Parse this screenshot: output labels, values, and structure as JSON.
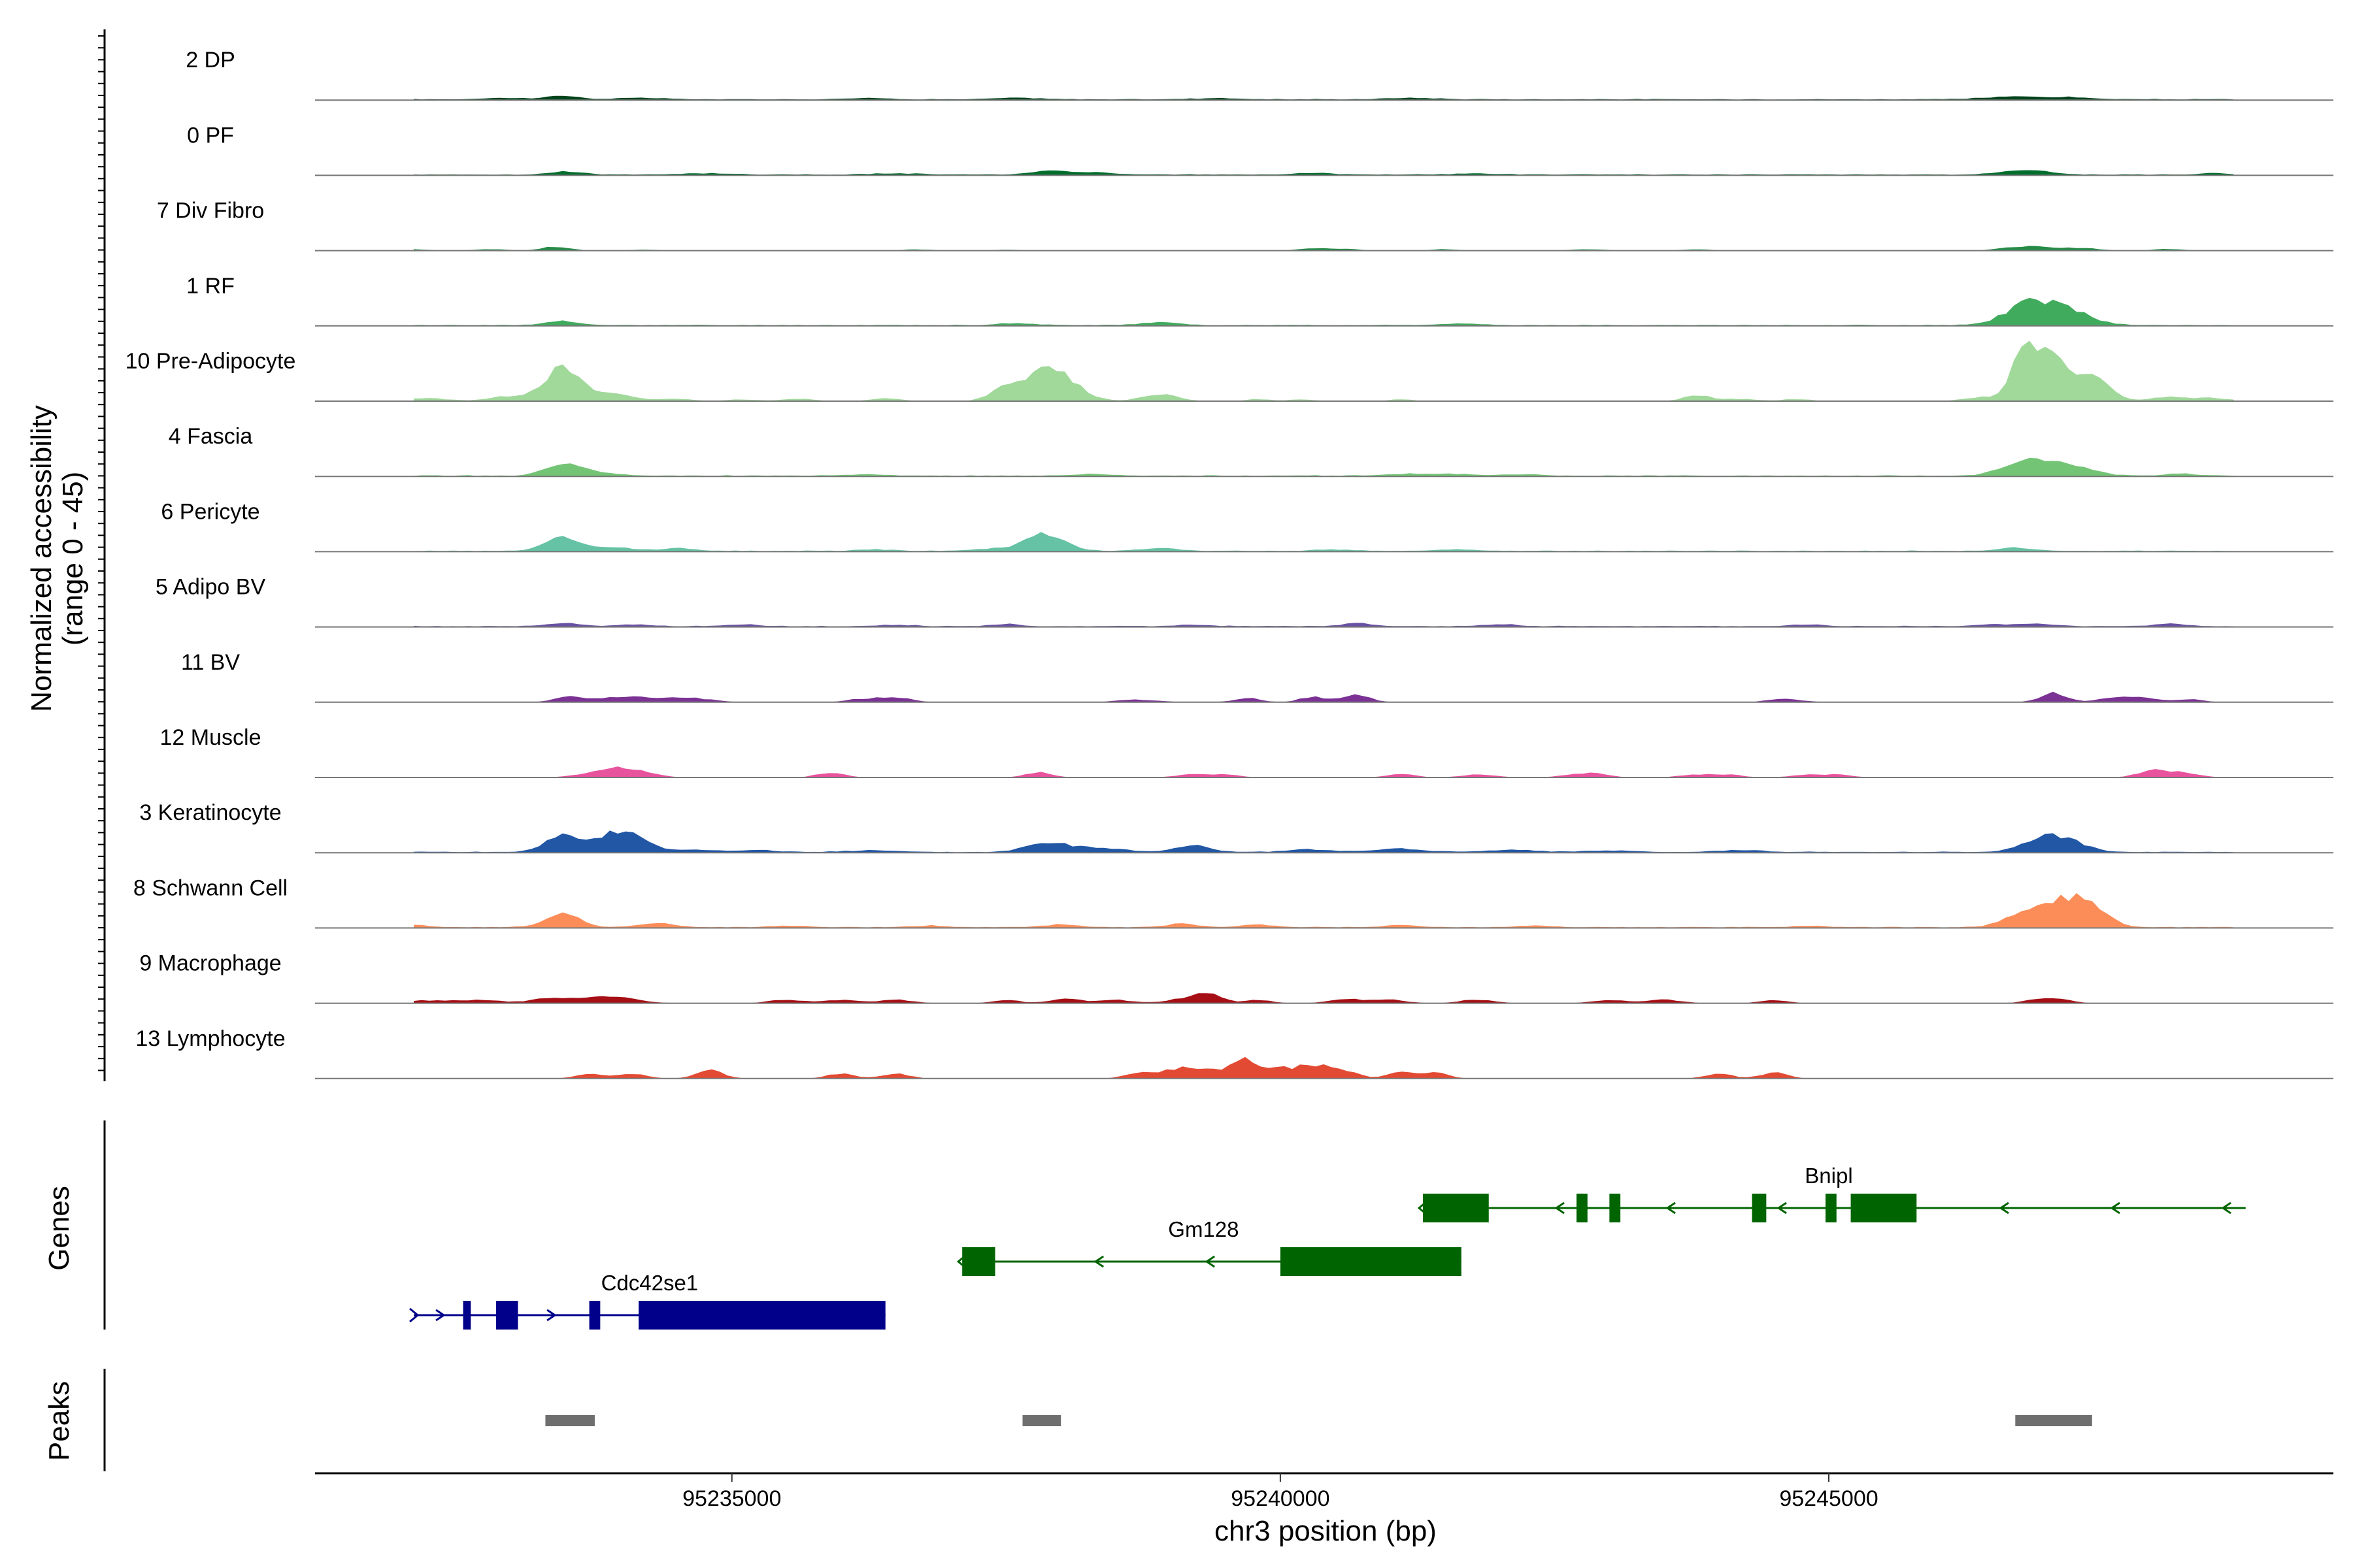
{
  "chart_data": {
    "type": "area",
    "title": "",
    "xlabel": "chr3 position (bp)",
    "ylabel_line1": "Normalized accessibility",
    "ylabel_line2": "(range 0 - 45)",
    "ylim": [
      0,
      45
    ],
    "xlim": [
      95231200,
      95249600
    ],
    "x_ticks": [
      95235000,
      95240000,
      95245000
    ],
    "x_tick_labels": [
      "95235000",
      "95240000",
      "95245000"
    ],
    "genes_label": "Genes",
    "peaks_label": "Peaks",
    "tracks": [
      {
        "name": "2 DP",
        "color": "#00441b",
        "coverage": "full",
        "peaks": [
          [
            95232900,
            0.8,
            180
          ],
          [
            95233450,
            2.0,
            160
          ],
          [
            95234200,
            0.8,
            200
          ],
          [
            95236200,
            0.7,
            200
          ],
          [
            95237600,
            0.8,
            200
          ],
          [
            95239400,
            0.7,
            200
          ],
          [
            95241200,
            0.8,
            220
          ],
          [
            95246700,
            1.6,
            260
          ],
          [
            95247200,
            1.0,
            200
          ]
        ]
      },
      {
        "name": "0 PF",
        "color": "#006d2c",
        "coverage": "full",
        "peaks": [
          [
            95233500,
            1.8,
            150
          ],
          [
            95234800,
            0.8,
            200
          ],
          [
            95236500,
            0.8,
            200
          ],
          [
            95237900,
            2.6,
            160
          ],
          [
            95238300,
            1.4,
            180
          ],
          [
            95240300,
            0.8,
            200
          ],
          [
            95241800,
            0.7,
            200
          ],
          [
            95246800,
            2.6,
            220
          ],
          [
            95248500,
            1.0,
            120
          ]
        ]
      },
      {
        "name": "7 Div Fibro",
        "color": "#238b45",
        "coverage": "sparse",
        "peaks": [
          [
            95232100,
            0.8,
            140
          ],
          [
            95232800,
            0.8,
            160
          ],
          [
            95233400,
            2.4,
            130
          ],
          [
            95234200,
            0.6,
            120
          ],
          [
            95236700,
            0.7,
            140
          ],
          [
            95237500,
            0.6,
            120
          ],
          [
            95240300,
            1.4,
            140
          ],
          [
            95240600,
            0.9,
            120
          ],
          [
            95241500,
            0.8,
            120
          ],
          [
            95242800,
            0.8,
            160
          ],
          [
            95243800,
            0.7,
            140
          ],
          [
            95246800,
            2.6,
            200
          ],
          [
            95247300,
            1.6,
            160
          ],
          [
            95248100,
            1.0,
            140
          ]
        ]
      },
      {
        "name": "1 RF",
        "color": "#41ab5d",
        "coverage": "full",
        "peaks": [
          [
            95233450,
            2.2,
            150
          ],
          [
            95237600,
            1.2,
            150
          ],
          [
            95238900,
            1.8,
            160
          ],
          [
            95241600,
            0.8,
            200
          ],
          [
            95246800,
            11.0,
            200
          ],
          [
            95247150,
            9.0,
            220
          ]
        ]
      },
      {
        "name": "10 Pre-Adipocyte",
        "color": "#a1d99b",
        "coverage": "sparse",
        "peaks": [
          [
            95232200,
            1.8,
            200
          ],
          [
            95233000,
            3.0,
            200
          ],
          [
            95233450,
            19.0,
            160
          ],
          [
            95233900,
            4.5,
            200
          ],
          [
            95234500,
            1.2,
            160
          ],
          [
            95235100,
            1.0,
            140
          ],
          [
            95235600,
            1.5,
            140
          ],
          [
            95236400,
            1.6,
            140
          ],
          [
            95237450,
            5.5,
            120
          ],
          [
            95237900,
            20.0,
            220
          ],
          [
            95238900,
            4.0,
            160
          ],
          [
            95239800,
            1.2,
            120
          ],
          [
            95240200,
            1.0,
            120
          ],
          [
            95241100,
            1.2,
            100
          ],
          [
            95243800,
            3.5,
            120
          ],
          [
            95244200,
            1.4,
            140
          ],
          [
            95244700,
            1.3,
            120
          ],
          [
            95246400,
            2.4,
            160
          ],
          [
            95246800,
            30.0,
            120
          ],
          [
            95247050,
            22.0,
            150
          ],
          [
            95247400,
            13.0,
            160
          ],
          [
            95248100,
            2.5,
            160
          ],
          [
            95248500,
            1.8,
            160
          ]
        ]
      },
      {
        "name": "4 Fascia",
        "color": "#74c476",
        "coverage": "full",
        "peaks": [
          [
            95233450,
            7.5,
            150
          ],
          [
            95233800,
            2.0,
            150
          ],
          [
            95236200,
            0.7,
            200
          ],
          [
            95238300,
            1.0,
            160
          ],
          [
            95241100,
            1.0,
            160
          ],
          [
            95241500,
            1.2,
            200
          ],
          [
            95242200,
            0.8,
            150
          ],
          [
            95246800,
            9.0,
            200
          ],
          [
            95247200,
            6.0,
            200
          ],
          [
            95248200,
            1.2,
            120
          ]
        ]
      },
      {
        "name": "6 Pericyte",
        "color": "#66c2a4",
        "coverage": "full",
        "peaks": [
          [
            95233450,
            8.0,
            160
          ],
          [
            95233900,
            2.2,
            200
          ],
          [
            95234500,
            1.5,
            150
          ],
          [
            95236300,
            1.0,
            140
          ],
          [
            95237300,
            1.2,
            150
          ],
          [
            95237850,
            10.5,
            180
          ],
          [
            95238900,
            1.5,
            160
          ],
          [
            95240500,
            0.9,
            160
          ],
          [
            95241600,
            1.0,
            160
          ],
          [
            95246700,
            2.0,
            140
          ]
        ]
      },
      {
        "name": "5 Adipo BV",
        "color": "#6a51a3",
        "coverage": "full",
        "peaks": [
          [
            95233450,
            1.8,
            150
          ],
          [
            95234100,
            1.0,
            150
          ],
          [
            95235100,
            1.0,
            150
          ],
          [
            95236500,
            0.8,
            150
          ],
          [
            95237500,
            1.3,
            120
          ],
          [
            95239200,
            0.9,
            150
          ],
          [
            95240700,
            2.0,
            120
          ],
          [
            95242000,
            1.5,
            120
          ],
          [
            95244800,
            1.0,
            150
          ],
          [
            95246500,
            1.0,
            150
          ],
          [
            95246900,
            1.6,
            150
          ],
          [
            95248100,
            1.6,
            120
          ]
        ]
      },
      {
        "name": "11 BV",
        "color": "#7b3294",
        "coverage": "sparse",
        "peaks": [
          [
            95233500,
            3.2,
            120
          ],
          [
            95233900,
            2.0,
            200
          ],
          [
            95234300,
            2.5,
            250
          ],
          [
            95234700,
            1.6,
            160
          ],
          [
            95236200,
            2.0,
            140
          ],
          [
            95236500,
            2.6,
            140
          ],
          [
            95238700,
            1.5,
            180
          ],
          [
            95239700,
            2.5,
            120
          ],
          [
            95240300,
            3.2,
            120
          ],
          [
            95240700,
            4.5,
            120
          ],
          [
            95244600,
            2.0,
            150
          ],
          [
            95247050,
            5.5,
            120
          ],
          [
            95247600,
            2.5,
            150
          ],
          [
            95247900,
            2.2,
            150
          ],
          [
            95248300,
            1.6,
            120
          ]
        ]
      },
      {
        "name": "12 Muscle",
        "color": "#e7539c",
        "coverage": "sparse",
        "peaks": [
          [
            95233700,
            2.0,
            160
          ],
          [
            95233950,
            4.5,
            140
          ],
          [
            95234200,
            2.8,
            140
          ],
          [
            95235900,
            3.0,
            120
          ],
          [
            95237800,
            3.0,
            120
          ],
          [
            95239200,
            1.8,
            150
          ],
          [
            95239500,
            1.8,
            120
          ],
          [
            95241100,
            2.2,
            120
          ],
          [
            95241800,
            1.8,
            150
          ],
          [
            95242700,
            1.8,
            150
          ],
          [
            95242900,
            1.5,
            120
          ],
          [
            95243800,
            1.8,
            150
          ],
          [
            95244100,
            1.6,
            120
          ],
          [
            95244800,
            1.6,
            150
          ],
          [
            95245100,
            1.6,
            120
          ],
          [
            95248000,
            4.5,
            160
          ],
          [
            95248300,
            1.6,
            120
          ]
        ]
      },
      {
        "name": "3 Keratinocyte",
        "color": "#2157a5",
        "coverage": "full",
        "peaks": [
          [
            95233450,
            9.0,
            150
          ],
          [
            95233800,
            5.0,
            150
          ],
          [
            95234050,
            10.0,
            180
          ],
          [
            95234600,
            1.2,
            200
          ],
          [
            95235200,
            1.0,
            200
          ],
          [
            95236300,
            1.0,
            200
          ],
          [
            95237900,
            5.5,
            200
          ],
          [
            95238400,
            2.0,
            200
          ],
          [
            95239200,
            4.0,
            160
          ],
          [
            95240300,
            1.5,
            200
          ],
          [
            95241100,
            2.0,
            200
          ],
          [
            95242100,
            1.2,
            200
          ],
          [
            95243000,
            1.0,
            200
          ],
          [
            95244200,
            1.0,
            200
          ],
          [
            95246800,
            3.0,
            150
          ],
          [
            95247050,
            8.5,
            150
          ],
          [
            95247300,
            3.0,
            150
          ]
        ]
      },
      {
        "name": "8 Schwann Cell",
        "color": "#fc8d59",
        "coverage": "full",
        "peaks": [
          [
            95232100,
            1.2,
            120
          ],
          [
            95233450,
            8.5,
            150
          ],
          [
            95234300,
            2.5,
            150
          ],
          [
            95235500,
            1.0,
            150
          ],
          [
            95236800,
            1.0,
            150
          ],
          [
            95238000,
            1.5,
            160
          ],
          [
            95239100,
            2.0,
            150
          ],
          [
            95239800,
            1.5,
            150
          ],
          [
            95241100,
            1.2,
            150
          ],
          [
            95242300,
            1.0,
            150
          ],
          [
            95244800,
            1.0,
            120
          ],
          [
            95246700,
            5.0,
            160
          ],
          [
            95247100,
            15.0,
            220
          ],
          [
            95247400,
            9.0,
            160
          ]
        ]
      },
      {
        "name": "9 Macrophage",
        "color": "#a50f15",
        "coverage": "sparse",
        "peaks": [
          [
            95232200,
            1.6,
            200
          ],
          [
            95232700,
            2.0,
            200
          ],
          [
            95233300,
            2.5,
            150
          ],
          [
            95233700,
            3.0,
            180
          ],
          [
            95234000,
            2.8,
            180
          ],
          [
            95235500,
            2.2,
            150
          ],
          [
            95236000,
            2.0,
            150
          ],
          [
            95236500,
            2.0,
            150
          ],
          [
            95237500,
            2.0,
            120
          ],
          [
            95238050,
            2.5,
            150
          ],
          [
            95238500,
            2.0,
            150
          ],
          [
            95239100,
            2.5,
            150
          ],
          [
            95239350,
            6.0,
            120
          ],
          [
            95239800,
            2.0,
            120
          ],
          [
            95240600,
            2.5,
            150
          ],
          [
            95241000,
            2.0,
            150
          ],
          [
            95241800,
            2.2,
            150
          ],
          [
            95243000,
            2.0,
            150
          ],
          [
            95243500,
            2.2,
            150
          ],
          [
            95244500,
            2.0,
            120
          ],
          [
            95247000,
            3.5,
            160
          ]
        ]
      },
      {
        "name": "13 Lymphocyte",
        "color": "#e34a33",
        "coverage": "sparse",
        "peaks": [
          [
            95233700,
            3.0,
            120
          ],
          [
            95234100,
            3.0,
            120
          ],
          [
            95234800,
            5.0,
            120
          ],
          [
            95236000,
            3.0,
            120
          ],
          [
            95236500,
            3.0,
            120
          ],
          [
            95238700,
            3.0,
            120
          ],
          [
            95238950,
            3.0,
            120
          ],
          [
            95239200,
            6.0,
            150
          ],
          [
            95239500,
            3.5,
            120
          ],
          [
            95239700,
            10.0,
            120
          ],
          [
            95240000,
            5.0,
            120
          ],
          [
            95240300,
            8.0,
            140
          ],
          [
            95240600,
            4.0,
            120
          ],
          [
            95241100,
            4.0,
            120
          ],
          [
            95241400,
            3.5,
            120
          ],
          [
            95244000,
            3.0,
            120
          ],
          [
            95244500,
            3.5,
            120
          ]
        ]
      }
    ],
    "genes": [
      {
        "name": "Cdc42se1",
        "strand": "+",
        "color": "#00008b",
        "row": 2,
        "start": 95232100,
        "end": 95236400,
        "label_x": 95234250,
        "exons": [
          [
            95232550,
            95232620
          ],
          [
            95232850,
            95233050
          ],
          [
            95233700,
            95233800
          ],
          [
            95234150,
            95236400
          ]
        ]
      },
      {
        "name": "Gm128",
        "strand": "-",
        "color": "#006400",
        "row": 1,
        "start": 95237100,
        "end": 95241650,
        "label_x": 95239300,
        "exons": [
          [
            95237100,
            95237400
          ],
          [
            95240000,
            95241650
          ]
        ]
      },
      {
        "name": "Bnipl",
        "strand": "-",
        "color": "#006400",
        "row": 0,
        "start": 95241300,
        "end": 95248800,
        "label_x": 95245000,
        "exons": [
          [
            95241300,
            95241900
          ],
          [
            95242700,
            95242800
          ],
          [
            95243000,
            95243100
          ],
          [
            95244300,
            95244430
          ],
          [
            95244970,
            95245070
          ],
          [
            95245200,
            95245800
          ]
        ]
      }
    ],
    "peak_regions": [
      [
        95233300,
        95233750
      ],
      [
        95237650,
        95238000
      ],
      [
        95246700,
        95247400
      ]
    ]
  }
}
